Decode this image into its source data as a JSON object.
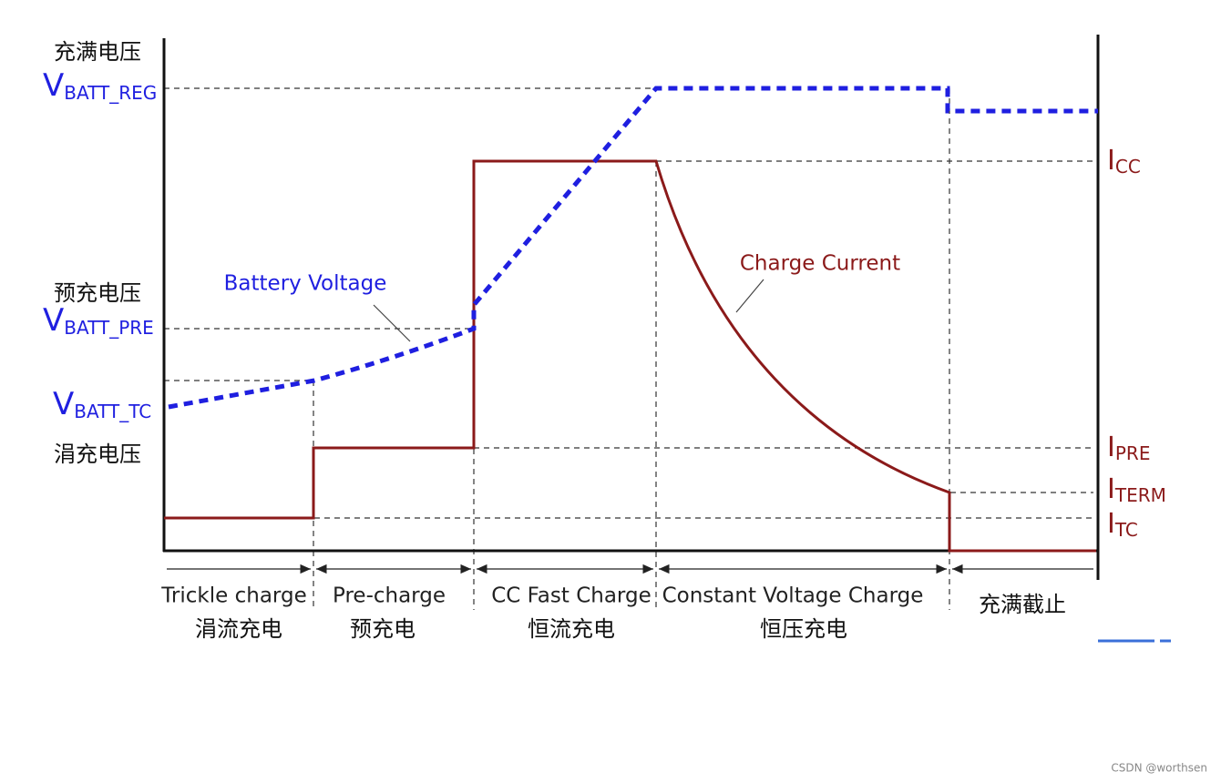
{
  "left_labels": {
    "reg_cn": "充满电压",
    "reg_main": "V",
    "reg_sub": "BATT_REG",
    "pre_cn": "预充电压",
    "pre_main": "V",
    "pre_sub": "BATT_PRE",
    "tc_main": "V",
    "tc_sub": "BATT_TC",
    "tc_cn": "涓充电压"
  },
  "right_labels": {
    "cc_main": "I",
    "cc_sub": "CC",
    "pre_main": "I",
    "pre_sub": "PRE",
    "term_main": "I",
    "term_sub": "TERM",
    "tc_main": "I",
    "tc_sub": "TC"
  },
  "curve_labels": {
    "voltage": "Battery Voltage",
    "current": "Charge Current"
  },
  "phases": [
    {
      "en": "Trickle charge",
      "cn": "涓流充电"
    },
    {
      "en": "Pre-charge",
      "cn": "预充电"
    },
    {
      "en": "CC Fast Charge",
      "cn": "恒流充电"
    },
    {
      "en": "Constant Voltage Charge",
      "cn": "恒压充电"
    },
    {
      "cn": "充满截止"
    }
  ],
  "watermark": "CSDN @worthsen"
}
